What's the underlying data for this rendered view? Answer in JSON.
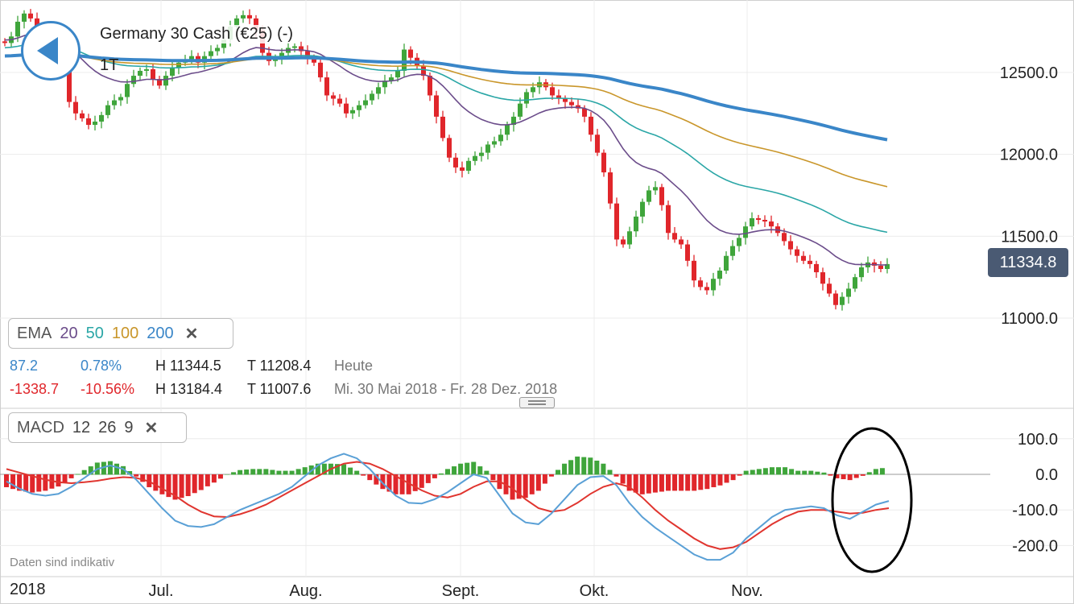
{
  "header": {
    "title": "Germany 30 Cash (€25) (-)",
    "interval": "1T",
    "back_icon": "back-arrow-icon"
  },
  "price_label": "11334.8",
  "ema_box": {
    "label": "EMA",
    "p20": "20",
    "p50": "50",
    "p100": "100",
    "p200": "200",
    "close_icon": "close-icon"
  },
  "stats": {
    "row1": {
      "change": "87.2",
      "pct": "0.78%",
      "high": "H 11344.5",
      "low": "T 11208.4",
      "period": "Heute"
    },
    "row2": {
      "change": "-1338.7",
      "pct": "-10.56%",
      "high": "H 13184.4",
      "low": "T 11007.6",
      "period": "Mi. 30 Mai 2018 - Fr. 28 Dez. 2018"
    }
  },
  "macd_box": {
    "label": "MACD",
    "fast": "12",
    "slow": "26",
    "signal": "9",
    "close_icon": "close-icon"
  },
  "disclaimer": "Daten sind indikativ",
  "year_label": "2018",
  "colors": {
    "up": "#3fa53b",
    "down": "#e0262b",
    "ema20": "#6b4c8a",
    "ema50": "#2aa6a6",
    "ema100": "#c9962a",
    "ema200": "#3a86c8",
    "macd": "#5aa0d6",
    "signal": "#e0352f",
    "price_tag": "#4a5a73"
  },
  "chart_data": [
    {
      "type": "candlestick",
      "title": "Germany 30 Cash (€25) (-)",
      "x_ticks": [
        "Jul.",
        "Aug.",
        "Sept.",
        "Okt.",
        "Nov."
      ],
      "y_ticks": [
        "11000.0",
        "11500.0",
        "12000.0",
        "12500.0"
      ],
      "ylim": [
        10900,
        13000
      ],
      "last_price": 11334.8,
      "grid": true,
      "close_approx": [
        12680,
        12720,
        12810,
        12860,
        12830,
        12760,
        12700,
        12620,
        12560,
        12540,
        12320,
        12250,
        12220,
        12180,
        12200,
        12240,
        12300,
        12330,
        12350,
        12430,
        12480,
        12510,
        12520,
        12460,
        12420,
        12480,
        12530,
        12560,
        12580,
        12600,
        12560,
        12600,
        12630,
        12650,
        12700,
        12780,
        12830,
        12850,
        12830,
        12760,
        12620,
        12570,
        12590,
        12620,
        12650,
        12660,
        12630,
        12590,
        12560,
        12470,
        12360,
        12340,
        12310,
        12250,
        12270,
        12300,
        12330,
        12370,
        12410,
        12450,
        12470,
        12510,
        12640,
        12590,
        12540,
        12480,
        12360,
        12230,
        12100,
        11980,
        11920,
        11900,
        11960,
        11990,
        12010,
        12060,
        12080,
        12120,
        12180,
        12230,
        12310,
        12380,
        12410,
        12440,
        12410,
        12360,
        12340,
        12320,
        12300,
        12280,
        12230,
        12120,
        12010,
        11890,
        11700,
        11480,
        11450,
        11530,
        11620,
        11710,
        11780,
        11800,
        11690,
        11520,
        11480,
        11450,
        11350,
        11230,
        11190,
        11170,
        11240,
        11290,
        11380,
        11440,
        11490,
        11560,
        11610,
        11600,
        11590,
        11560,
        11520,
        11470,
        11420,
        11380,
        11350,
        11330,
        11280,
        11210,
        11150,
        11080,
        11130,
        11180,
        11250,
        11310,
        11340,
        11320,
        11300,
        11330
      ]
    },
    {
      "type": "line",
      "series": [
        {
          "name": "MACD",
          "values": [
            -20,
            -40,
            -55,
            -60,
            -55,
            -35,
            -10,
            15,
            25,
            15,
            -15,
            -55,
            -95,
            -130,
            -145,
            -148,
            -140,
            -120,
            -100,
            -85,
            -70,
            -55,
            -35,
            -5,
            25,
            45,
            58,
            45,
            15,
            -25,
            -60,
            -80,
            -82,
            -70,
            -50,
            -25,
            0,
            -10,
            -60,
            -110,
            -135,
            -140,
            -110,
            -70,
            -30,
            -8,
            -5,
            -30,
            -80,
            -120,
            -150,
            -175,
            -200,
            -225,
            -240,
            -240,
            -220,
            -180,
            -150,
            -120,
            -100,
            -95,
            -90,
            -95,
            -115,
            -125,
            -105,
            -85,
            -75
          ]
        },
        {
          "name": "Signal",
          "values": [
            15,
            5,
            -5,
            -15,
            -22,
            -25,
            -22,
            -18,
            -12,
            -8,
            -10,
            -20,
            -40,
            -60,
            -85,
            -105,
            -118,
            -120,
            -112,
            -100,
            -85,
            -65,
            -45,
            -25,
            -5,
            15,
            30,
            35,
            30,
            15,
            -5,
            -25,
            -45,
            -60,
            -65,
            -55,
            -35,
            -20,
            -20,
            -40,
            -70,
            -95,
            -105,
            -100,
            -80,
            -55,
            -35,
            -25,
            -35,
            -65,
            -100,
            -130,
            -155,
            -180,
            -200,
            -210,
            -205,
            -190,
            -165,
            -140,
            -120,
            -105,
            -100,
            -100,
            -105,
            -110,
            -108,
            -100,
            -95
          ]
        },
        {
          "name": "Histogram",
          "values": [
            -35,
            -45,
            -50,
            -45,
            -33,
            -10,
            12,
            33,
            37,
            23,
            -5,
            -35,
            -55,
            -70,
            -60,
            -43,
            -22,
            0,
            12,
            15,
            15,
            10,
            10,
            20,
            30,
            30,
            28,
            10,
            -15,
            -40,
            -55,
            -55,
            -37,
            -10,
            15,
            30,
            35,
            10,
            -40,
            -70,
            -65,
            -45,
            -5,
            30,
            50,
            47,
            30,
            -5,
            -45,
            -55,
            -50,
            -45,
            -45,
            -45,
            -40,
            -30,
            -15,
            10,
            15,
            20,
            20,
            10,
            10,
            5,
            -10,
            -15,
            -3,
            15,
            20
          ]
        }
      ],
      "y_ticks": [
        "100.0",
        "0.0",
        "-100.0",
        "-200.0"
      ],
      "ylim": [
        -260,
        150
      ]
    }
  ]
}
